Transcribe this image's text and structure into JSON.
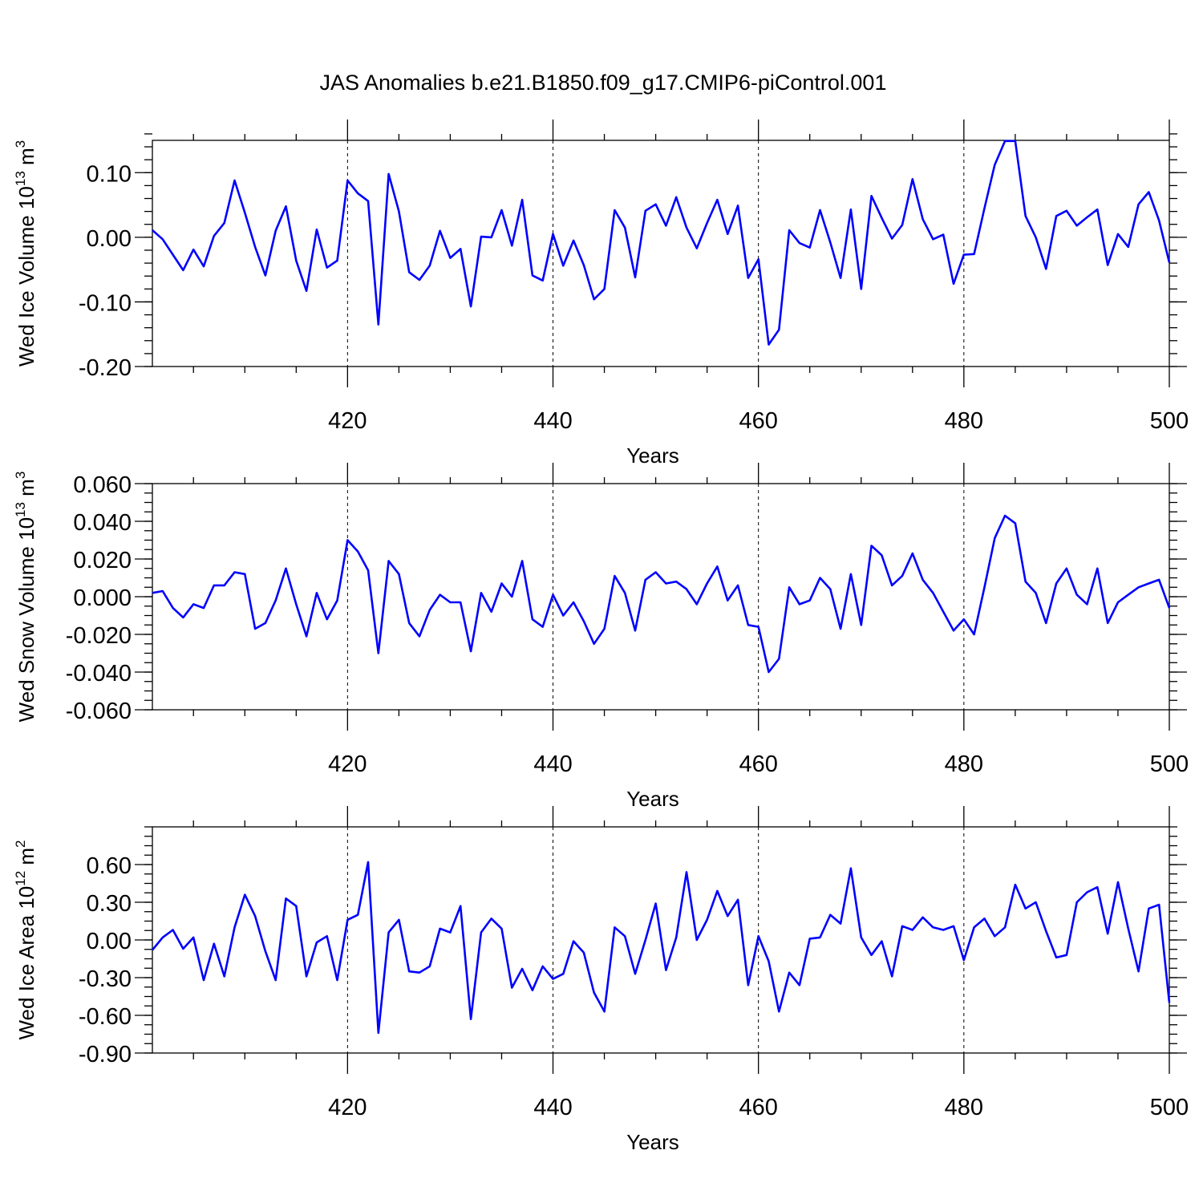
{
  "title": "JAS Anomalies b.e21.B1850.f09_g17.CMIP6-piControl.001",
  "chart_data": [
    {
      "type": "line",
      "ylabel_main": "Wed Ice Volume 10",
      "ylabel_exp": "13",
      "ylabel_unit": " m",
      "ylabel_unit_exp": "3",
      "xlabel": "Years",
      "xlim": [
        401,
        500
      ],
      "ylim": [
        -0.2,
        0.15
      ],
      "yticks": [
        -0.2,
        -0.1,
        0.0,
        0.1
      ],
      "ytick_labels": [
        "-0.20",
        "-0.10",
        "0.00",
        "0.10"
      ],
      "yminor_step": 0.02,
      "xticks": [
        420,
        440,
        460,
        480,
        500
      ],
      "xtick_labels": [
        "420",
        "440",
        "460",
        "480",
        "500"
      ],
      "xminor_step": 5,
      "grid": "vertical dashed",
      "series_color": "#0000ff",
      "x": [
        401,
        402,
        403,
        404,
        405,
        406,
        407,
        408,
        409,
        410,
        411,
        412,
        413,
        414,
        415,
        416,
        417,
        418,
        419,
        420,
        421,
        422,
        423,
        424,
        425,
        426,
        427,
        428,
        429,
        430,
        431,
        432,
        433,
        434,
        435,
        436,
        437,
        438,
        439,
        440,
        441,
        442,
        443,
        444,
        445,
        446,
        447,
        448,
        449,
        450,
        451,
        452,
        453,
        454,
        455,
        456,
        457,
        458,
        459,
        460,
        461,
        462,
        463,
        464,
        465,
        466,
        467,
        468,
        469,
        470,
        471,
        472,
        473,
        474,
        475,
        476,
        477,
        478,
        479,
        480,
        481,
        482,
        483,
        484,
        485,
        486,
        487,
        488,
        489,
        490,
        491,
        492,
        493,
        494,
        495,
        496,
        497,
        498,
        499,
        500
      ],
      "y": [
        0.011,
        -0.003,
        -0.027,
        -0.051,
        -0.019,
        -0.045,
        0.002,
        0.022,
        0.088,
        0.038,
        -0.015,
        -0.059,
        0.01,
        0.048,
        -0.036,
        -0.083,
        0.012,
        -0.047,
        -0.036,
        0.088,
        0.068,
        0.056,
        -0.135,
        0.098,
        0.04,
        -0.054,
        -0.066,
        -0.044,
        0.01,
        -0.032,
        -0.018,
        -0.107,
        0.001,
        0.0,
        0.042,
        -0.013,
        0.058,
        -0.059,
        -0.067,
        0.005,
        -0.044,
        -0.005,
        -0.043,
        -0.096,
        -0.08,
        0.042,
        0.015,
        -0.062,
        0.041,
        0.051,
        0.018,
        0.062,
        0.015,
        -0.017,
        0.022,
        0.058,
        0.005,
        0.049,
        -0.063,
        -0.034,
        -0.166,
        -0.143,
        0.011,
        -0.009,
        -0.016,
        0.042,
        -0.008,
        -0.063,
        0.043,
        -0.08,
        0.064,
        0.03,
        -0.002,
        0.019,
        0.09,
        0.028,
        -0.003,
        0.004,
        -0.072,
        -0.027,
        -0.026,
        0.045,
        0.112,
        0.149,
        0.149,
        0.033,
        0.0,
        -0.049,
        0.033,
        0.041,
        0.018,
        0.031,
        0.043,
        -0.043,
        0.005,
        -0.015,
        0.051,
        0.07,
        0.026,
        -0.039
      ]
    },
    {
      "type": "line",
      "ylabel_main": "Wed Snow Volume 10",
      "ylabel_exp": "13",
      "ylabel_unit": " m",
      "ylabel_unit_exp": "3",
      "xlabel": "Years",
      "xlim": [
        401,
        500
      ],
      "ylim": [
        -0.06,
        0.06
      ],
      "yticks": [
        -0.06,
        -0.04,
        -0.02,
        0.0,
        0.02,
        0.04,
        0.06
      ],
      "ytick_labels": [
        "-0.060",
        "-0.040",
        "-0.020",
        "0.000",
        "0.020",
        "0.040",
        "0.060"
      ],
      "yminor_step": 0.005,
      "xticks": [
        420,
        440,
        460,
        480,
        500
      ],
      "xtick_labels": [
        "420",
        "440",
        "460",
        "480",
        "500"
      ],
      "xminor_step": 5,
      "grid": "vertical dashed",
      "series_color": "#0000ff",
      "x": [
        401,
        402,
        403,
        404,
        405,
        406,
        407,
        408,
        409,
        410,
        411,
        412,
        413,
        414,
        415,
        416,
        417,
        418,
        419,
        420,
        421,
        422,
        423,
        424,
        425,
        426,
        427,
        428,
        429,
        430,
        431,
        432,
        433,
        434,
        435,
        436,
        437,
        438,
        439,
        440,
        441,
        442,
        443,
        444,
        445,
        446,
        447,
        448,
        449,
        450,
        451,
        452,
        453,
        454,
        455,
        456,
        457,
        458,
        459,
        460,
        461,
        462,
        463,
        464,
        465,
        466,
        467,
        468,
        469,
        470,
        471,
        472,
        473,
        474,
        475,
        476,
        477,
        478,
        479,
        480,
        481,
        482,
        483,
        484,
        485,
        486,
        487,
        488,
        489,
        490,
        491,
        492,
        493,
        494,
        495,
        496,
        497,
        498,
        499,
        500
      ],
      "y": [
        0.002,
        0.003,
        -0.006,
        -0.011,
        -0.004,
        -0.006,
        0.006,
        0.006,
        0.013,
        0.012,
        -0.017,
        -0.014,
        -0.002,
        0.015,
        -0.004,
        -0.021,
        0.002,
        -0.012,
        -0.002,
        0.03,
        0.024,
        0.014,
        -0.03,
        0.019,
        0.012,
        -0.014,
        -0.021,
        -0.007,
        0.001,
        -0.003,
        -0.003,
        -0.029,
        0.002,
        -0.008,
        0.007,
        0.0,
        0.019,
        -0.012,
        -0.016,
        0.001,
        -0.01,
        -0.003,
        -0.013,
        -0.025,
        -0.017,
        0.011,
        0.002,
        -0.018,
        0.009,
        0.013,
        0.007,
        0.008,
        0.004,
        -0.004,
        0.007,
        0.016,
        -0.002,
        0.006,
        -0.015,
        -0.016,
        -0.04,
        -0.033,
        0.005,
        -0.004,
        -0.002,
        0.01,
        0.004,
        -0.017,
        0.012,
        -0.015,
        0.027,
        0.022,
        0.006,
        0.011,
        0.023,
        0.009,
        0.002,
        -0.008,
        -0.018,
        -0.012,
        -0.02,
        0.005,
        0.031,
        0.043,
        0.039,
        0.008,
        0.002,
        -0.014,
        0.007,
        0.015,
        0.001,
        -0.004,
        0.015,
        -0.014,
        -0.003,
        0.001,
        0.005,
        0.007,
        0.009,
        -0.006
      ]
    },
    {
      "type": "line",
      "ylabel_main": "Wed Ice Area 10",
      "ylabel_exp": "12",
      "ylabel_unit": " m",
      "ylabel_unit_exp": "2",
      "xlabel": "Years",
      "xlim": [
        401,
        500
      ],
      "ylim": [
        -0.9,
        0.9
      ],
      "yticks": [
        -0.9,
        -0.6,
        -0.3,
        0.0,
        0.3,
        0.6
      ],
      "ytick_labels": [
        "-0.90",
        "-0.60",
        "-0.30",
        "0.00",
        "0.30",
        "0.60"
      ],
      "yminor_step": 0.075,
      "xticks": [
        420,
        440,
        460,
        480,
        500
      ],
      "xtick_labels": [
        "420",
        "440",
        "460",
        "480",
        "500"
      ],
      "xminor_step": 5,
      "grid": "vertical dashed",
      "series_color": "#0000ff",
      "x": [
        401,
        402,
        403,
        404,
        405,
        406,
        407,
        408,
        409,
        410,
        411,
        412,
        413,
        414,
        415,
        416,
        417,
        418,
        419,
        420,
        421,
        422,
        423,
        424,
        425,
        426,
        427,
        428,
        429,
        430,
        431,
        432,
        433,
        434,
        435,
        436,
        437,
        438,
        439,
        440,
        441,
        442,
        443,
        444,
        445,
        446,
        447,
        448,
        449,
        450,
        451,
        452,
        453,
        454,
        455,
        456,
        457,
        458,
        459,
        460,
        461,
        462,
        463,
        464,
        465,
        466,
        467,
        468,
        469,
        470,
        471,
        472,
        473,
        474,
        475,
        476,
        477,
        478,
        479,
        480,
        481,
        482,
        483,
        484,
        485,
        486,
        487,
        488,
        489,
        490,
        491,
        492,
        493,
        494,
        495,
        496,
        497,
        498,
        499,
        500
      ],
      "y": [
        -0.08,
        0.02,
        0.08,
        -0.07,
        0.02,
        -0.32,
        -0.03,
        -0.29,
        0.1,
        0.36,
        0.19,
        -0.09,
        -0.32,
        0.33,
        0.27,
        -0.29,
        -0.02,
        0.03,
        -0.32,
        0.16,
        0.2,
        0.62,
        -0.74,
        0.06,
        0.16,
        -0.25,
        -0.26,
        -0.21,
        0.09,
        0.06,
        0.27,
        -0.63,
        0.06,
        0.17,
        0.09,
        -0.38,
        -0.23,
        -0.4,
        -0.21,
        -0.31,
        -0.27,
        -0.01,
        -0.1,
        -0.42,
        -0.57,
        0.1,
        0.03,
        -0.27,
        0.0,
        0.29,
        -0.24,
        0.02,
        0.54,
        0.0,
        0.16,
        0.39,
        0.19,
        0.32,
        -0.36,
        0.03,
        -0.17,
        -0.57,
        -0.26,
        -0.36,
        0.01,
        0.02,
        0.2,
        0.13,
        0.57,
        0.02,
        -0.12,
        -0.01,
        -0.29,
        0.11,
        0.08,
        0.18,
        0.1,
        0.08,
        0.11,
        -0.16,
        0.1,
        0.17,
        0.03,
        0.1,
        0.44,
        0.25,
        0.3,
        0.07,
        -0.14,
        -0.12,
        0.3,
        0.38,
        0.42,
        0.05,
        0.46,
        0.09,
        -0.25,
        0.25,
        0.28,
        -0.5
      ]
    }
  ]
}
